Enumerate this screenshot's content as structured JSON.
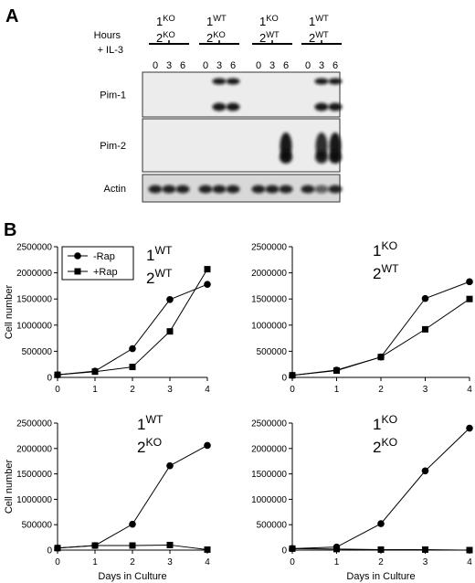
{
  "panel_a": {
    "label": "A",
    "header": [
      "Hours",
      "+ IL-3"
    ],
    "groups": [
      {
        "gene1": "1",
        "geno1": "KO",
        "gene2": "2",
        "geno2": "KO",
        "hours": [
          "0",
          "3",
          "6"
        ]
      },
      {
        "gene1": "1",
        "geno1": "WT",
        "gene2": "2",
        "geno2": "KO",
        "hours": [
          "0",
          "3",
          "6"
        ]
      },
      {
        "gene1": "1",
        "geno1": "KO",
        "gene2": "2",
        "geno2": "WT",
        "hours": [
          "0",
          "3",
          "6"
        ]
      },
      {
        "gene1": "1",
        "geno1": "WT",
        "gene2": "2",
        "geno2": "WT",
        "hours": [
          "0",
          "3",
          "6"
        ]
      }
    ],
    "blots": [
      "Pim-1",
      "Pim-2",
      "Actin"
    ]
  },
  "panel_b_label": "B",
  "chart_data": [
    {
      "type": "line",
      "annotation": [
        {
          "base": "1",
          "sup": "WT"
        },
        {
          "base": "2",
          "sup": "WT"
        }
      ],
      "ylabel": "Cell number",
      "legend": "upper left",
      "x": [
        0,
        1,
        2,
        3,
        4
      ],
      "xlim": [
        0,
        4
      ],
      "xticks": [
        0,
        1,
        2,
        3,
        4
      ],
      "ylim": [
        0,
        2500000
      ],
      "yticks": [
        0,
        500000,
        1000000,
        1500000,
        2000000,
        2500000
      ],
      "series": [
        {
          "name": "-Rap",
          "color": "#000000",
          "marker": "circle",
          "values": [
            50000,
            120000,
            550000,
            1490000,
            1780000
          ]
        },
        {
          "name": "+Rap",
          "color": "#000000",
          "marker": "square",
          "values": [
            50000,
            110000,
            200000,
            880000,
            2070000
          ]
        }
      ]
    },
    {
      "type": "line",
      "annotation": [
        {
          "base": "1",
          "sup": "KO"
        },
        {
          "base": "2",
          "sup": "WT"
        }
      ],
      "x": [
        0,
        1,
        2,
        3,
        4
      ],
      "xlim": [
        0,
        4
      ],
      "xticks": [
        0,
        1,
        2,
        3,
        4
      ],
      "ylim": [
        0,
        2500000
      ],
      "yticks": [
        0,
        500000,
        1000000,
        1500000,
        2000000,
        2500000
      ],
      "series": [
        {
          "name": "-Rap",
          "color": "#000000",
          "marker": "circle",
          "values": [
            40000,
            140000,
            390000,
            1510000,
            1830000
          ]
        },
        {
          "name": "+Rap",
          "color": "#000000",
          "marker": "square",
          "values": [
            40000,
            130000,
            390000,
            920000,
            1500000
          ]
        }
      ]
    },
    {
      "type": "line",
      "annotation": [
        {
          "base": "1",
          "sup": "WT"
        },
        {
          "base": "2",
          "sup": "KO"
        }
      ],
      "ylabel": "Cell number",
      "xlabel": "Days in Culture",
      "x": [
        0,
        1,
        2,
        3,
        4
      ],
      "xlim": [
        0,
        4
      ],
      "xticks": [
        0,
        1,
        2,
        3,
        4
      ],
      "ylim": [
        0,
        2500000
      ],
      "yticks": [
        0,
        500000,
        1000000,
        1500000,
        2000000,
        2500000
      ],
      "series": [
        {
          "name": "-Rap",
          "color": "#000000",
          "marker": "circle",
          "values": [
            40000,
            90000,
            510000,
            1660000,
            2060000
          ]
        },
        {
          "name": "+Rap",
          "color": "#000000",
          "marker": "square",
          "values": [
            40000,
            90000,
            90000,
            100000,
            10000
          ]
        }
      ]
    },
    {
      "type": "line",
      "annotation": [
        {
          "base": "1",
          "sup": "KO"
        },
        {
          "base": "2",
          "sup": "KO"
        }
      ],
      "xlabel": "Days in Culture",
      "x": [
        0,
        1,
        2,
        3,
        4
      ],
      "xlim": [
        0,
        4
      ],
      "xticks": [
        0,
        1,
        2,
        3,
        4
      ],
      "ylim": [
        0,
        2500000
      ],
      "yticks": [
        0,
        500000,
        1000000,
        1500000,
        2000000,
        2500000
      ],
      "series": [
        {
          "name": "-Rap",
          "color": "#000000",
          "marker": "circle",
          "values": [
            30000,
            60000,
            520000,
            1560000,
            2400000
          ]
        },
        {
          "name": "+Rap",
          "color": "#000000",
          "marker": "square",
          "values": [
            30000,
            20000,
            10000,
            10000,
            0
          ]
        }
      ]
    }
  ]
}
